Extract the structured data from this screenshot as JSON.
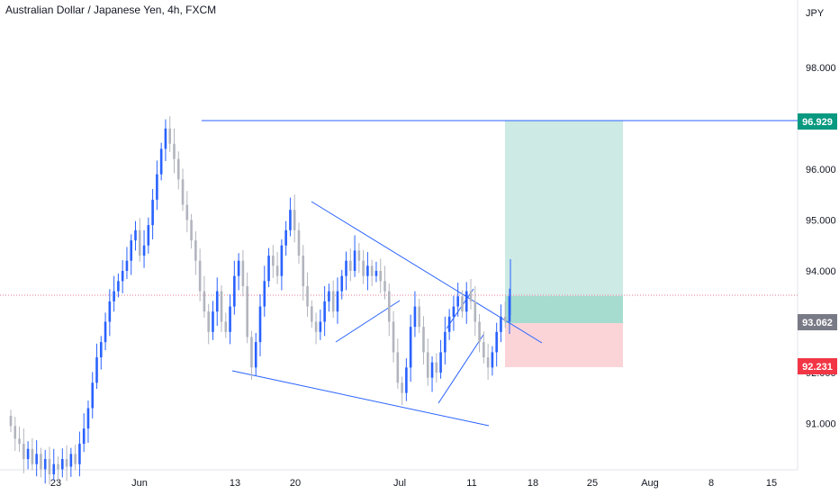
{
  "chart_data": {
    "type": "candlestick",
    "title": "Australian Dollar / Japanese Yen, 4h, FXCM",
    "currency": "JPY",
    "y_ticks": [
      "91.000",
      "92.000",
      "93.000",
      "94.000",
      "95.000",
      "96.000",
      "98.000"
    ],
    "x_ticks": [
      "23",
      "Jun",
      "13",
      "20",
      "Jul",
      "11",
      "18",
      "25",
      "Aug",
      "8",
      "15"
    ],
    "price_labels": {
      "target": "96.929",
      "current": "93.062",
      "stop": "92.231"
    },
    "colors": {
      "up": "#2962ff",
      "down": "#b2b5be",
      "target_zone": "#cdeae4",
      "entry_zone": "#a6dccf",
      "stop_zone": "#fad4d7",
      "target_badge": "#089981",
      "current_badge": "#787b86",
      "stop_badge": "#f23645",
      "trend_line": "#2962ff",
      "price_line": "#e57a92"
    },
    "closes": [
      90.95,
      90.7,
      90.6,
      90.3,
      90.5,
      90.2,
      90.4,
      90.1,
      90.3,
      90.0,
      90.2,
      90.1,
      90.3,
      90.15,
      90.4,
      90.2,
      90.6,
      90.9,
      91.3,
      91.8,
      92.3,
      92.6,
      93.0,
      93.4,
      93.6,
      93.8,
      94.0,
      94.2,
      94.6,
      94.8,
      94.3,
      94.5,
      94.9,
      95.4,
      95.9,
      96.4,
      96.8,
      96.5,
      96.2,
      95.8,
      95.3,
      95.0,
      94.6,
      94.2,
      93.6,
      93.2,
      92.8,
      93.2,
      93.6,
      93.0,
      92.8,
      93.3,
      93.9,
      94.2,
      93.7,
      92.7,
      92.1,
      92.6,
      93.3,
      93.8,
      94.3,
      94.1,
      93.9,
      94.5,
      94.8,
      95.2,
      94.8,
      94.3,
      93.7,
      93.3,
      93.0,
      92.8,
      93.0,
      93.4,
      93.6,
      93.2,
      93.6,
      93.9,
      94.2,
      94.0,
      94.4,
      94.2,
      93.9,
      94.1,
      93.9,
      94.0,
      93.8,
      93.6,
      93.0,
      92.4,
      91.8,
      91.6,
      92.1,
      92.9,
      93.3,
      92.9,
      92.4,
      91.9,
      92.2,
      92.0,
      92.4,
      92.8,
      93.1,
      93.3,
      93.5,
      93.2,
      93.6,
      93.4,
      93.0,
      92.6,
      92.3,
      92.1,
      92.4,
      92.8,
      93.1,
      93.0,
      93.5
    ]
  }
}
